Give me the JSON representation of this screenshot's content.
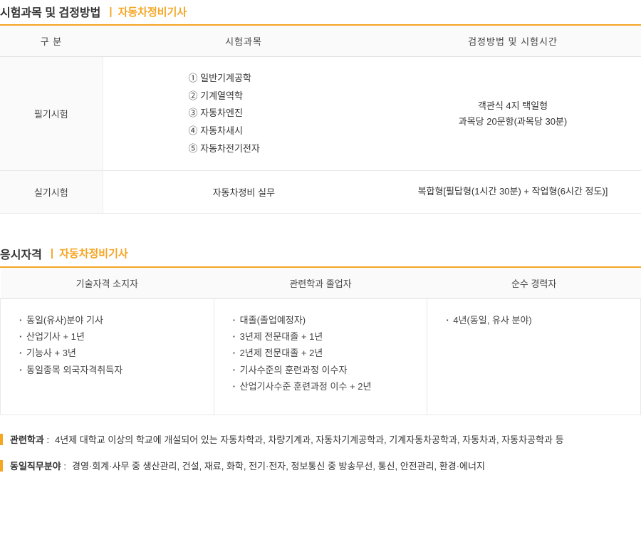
{
  "section1": {
    "title": "시험과목 및 검정방법",
    "subtitle": "자동차정비기사",
    "table": {
      "headers": [
        "구 분",
        "시험과목",
        "검정방법 및 시험시간"
      ],
      "rows": [
        {
          "label": "필기시험",
          "subjects": [
            "① 일반기계공학",
            "② 기계열역학",
            "③ 자동차엔진",
            "④ 자동차새시",
            "⑤ 자동차전기전자"
          ],
          "method_line1": "객관식 4지 택일형",
          "method_line2": "과목당 20문항(과목당 30분)"
        },
        {
          "label": "실기시험",
          "subject_text": "자동차정비 실무",
          "method_text": "복합형[필답형(1시간 30분) + 작업형(6시간 정도)]"
        }
      ]
    }
  },
  "section2": {
    "title": "응시자격",
    "subtitle": "자동차정비기사",
    "table": {
      "headers": [
        "기술자격 소지자",
        "관련학과 졸업자",
        "순수 경력자"
      ],
      "cols": [
        [
          "동일(유사)분야 기사",
          "산업기사 + 1년",
          "기능사 + 3년",
          "동일종목 외국자격취득자"
        ],
        [
          "대졸(졸업예정자)",
          "3년제 전문대졸 + 1년",
          "2년제 전문대졸 + 2년",
          "기사수준의 훈련과정 이수자",
          "산업기사수준 훈련과정 이수 + 2년"
        ],
        [
          "4년(동일, 유사 분야)"
        ]
      ]
    },
    "notes": [
      {
        "label": "관련학과",
        "text": "4년제 대학교 이상의 학교에 개설되어 있는 자동차학과, 차량기계과, 자동차기계공학과, 기계자동차공학과, 자동차과, 자동차공학과 등"
      },
      {
        "label": "동일직무분야",
        "text": "경영·회계·사무 중 생산관리, 건설, 재료, 화학, 전기·전자, 정보통신 중 방송무선, 통신, 안전관리, 환경·에너지"
      }
    ]
  }
}
